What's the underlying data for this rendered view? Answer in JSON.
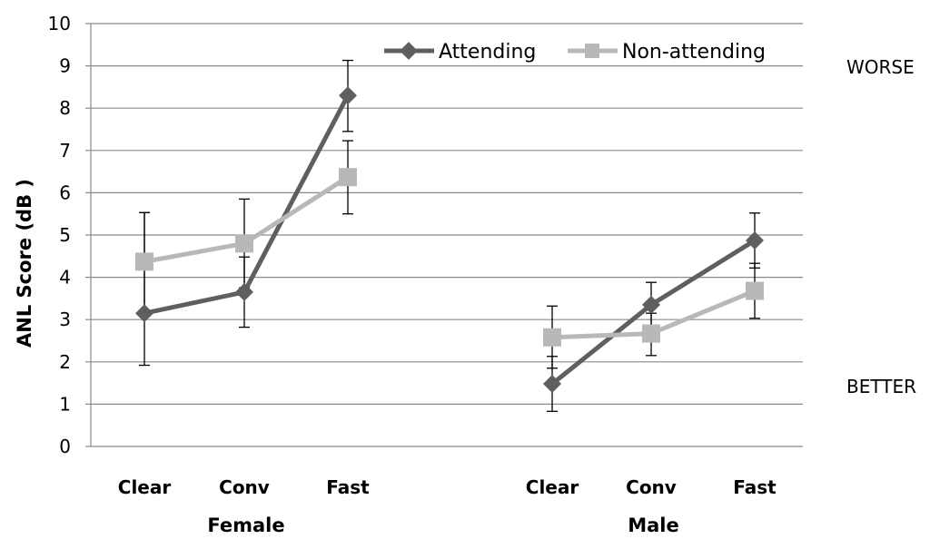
{
  "chart_data": {
    "type": "line",
    "ylabel": "ANL Score (dB )",
    "ylim": [
      0,
      10
    ],
    "yticks": [
      "0",
      "1",
      "2",
      "3",
      "4",
      "5",
      "6",
      "7",
      "8",
      "9",
      "10"
    ],
    "grid": true,
    "legend_position": "top-right",
    "groups": [
      {
        "label": "Female",
        "categories": [
          "Clear",
          "Conv",
          "Fast"
        ]
      },
      {
        "label": "Male",
        "categories": [
          "Clear",
          "Conv",
          "Fast"
        ]
      }
    ],
    "series": [
      {
        "name": "Attending",
        "color": "#5f5f5f",
        "marker": "diamond",
        "female": {
          "values": [
            3.15,
            3.65,
            8.3
          ],
          "err_low": [
            1.92,
            2.82,
            7.45
          ],
          "err_high": [
            5.53,
            4.48,
            9.13
          ]
        },
        "male": {
          "values": [
            1.48,
            3.35,
            4.87
          ],
          "err_low": [
            0.83,
            2.65,
            4.22
          ],
          "err_high": [
            2.13,
            3.88,
            5.52
          ]
        }
      },
      {
        "name": "Non-attending",
        "color": "#b8b8b8",
        "marker": "square",
        "female": {
          "values": [
            4.37,
            4.8,
            6.37
          ],
          "err_low": [
            3.19,
            3.75,
            5.5
          ],
          "err_high": [
            5.53,
            5.85,
            7.23
          ]
        },
        "male": {
          "values": [
            2.58,
            2.67,
            3.68
          ],
          "err_low": [
            1.85,
            2.15,
            3.03
          ],
          "err_high": [
            3.32,
            3.15,
            4.33
          ]
        }
      }
    ],
    "annotations": {
      "top": "WORSE",
      "bottom": "BETTER"
    }
  }
}
